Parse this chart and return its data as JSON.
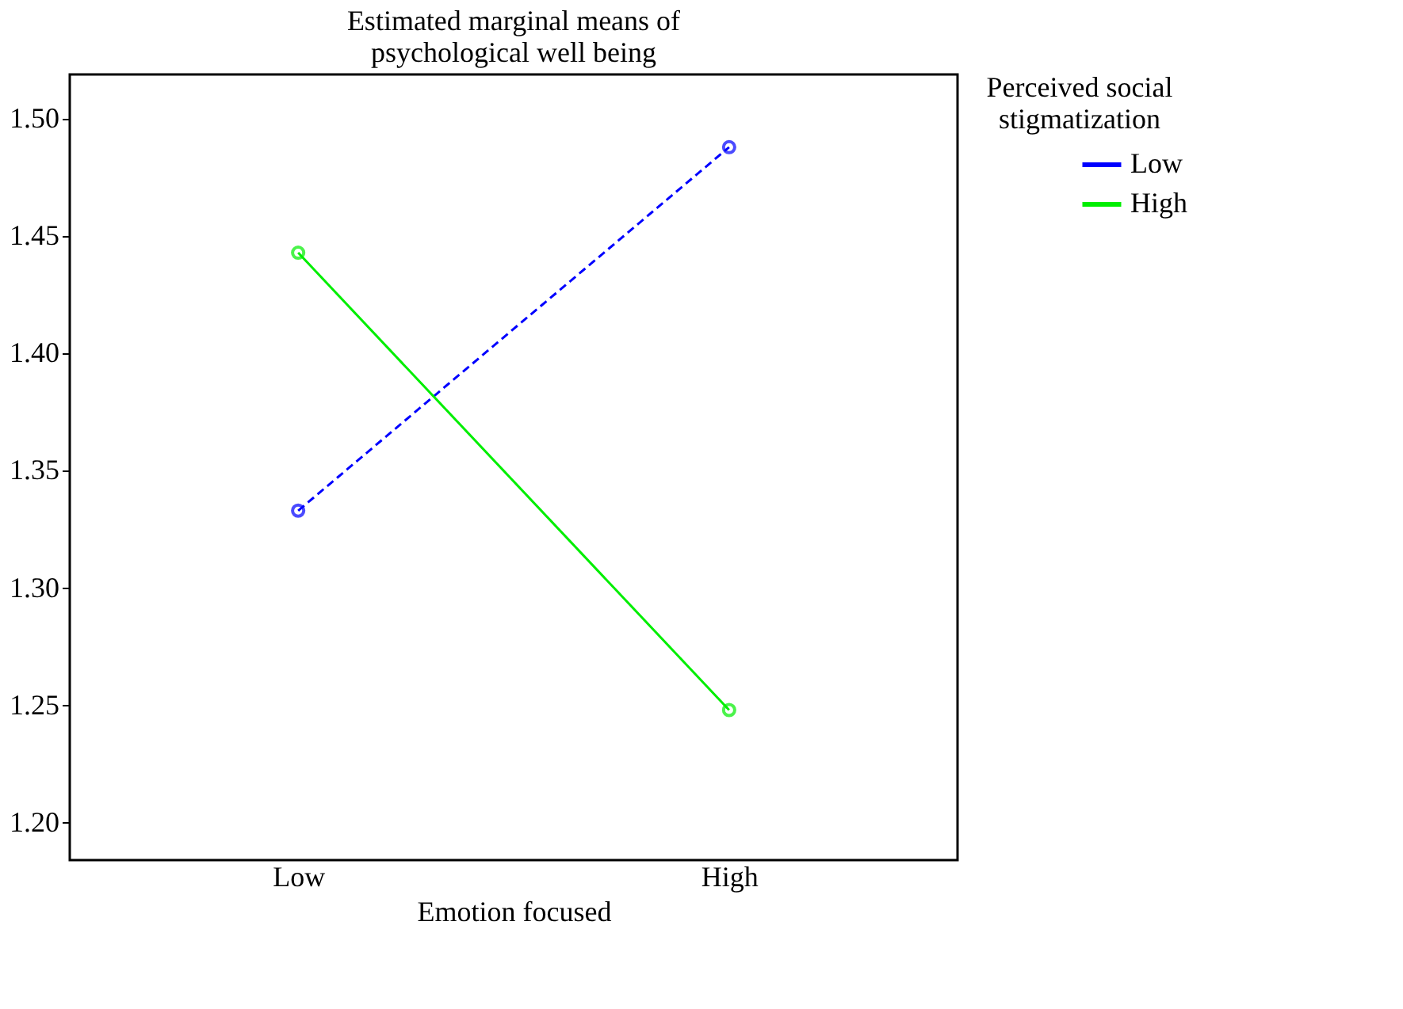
{
  "chart_data": {
    "type": "line",
    "title": [
      "Estimated marginal means of",
      "psychological well being"
    ],
    "xlabel": "Emotion focused",
    "legend_title": [
      "Perceived social",
      "stigmatization"
    ],
    "categories": [
      "Low",
      "High"
    ],
    "series": [
      {
        "name": "Low",
        "color": "#0000ff",
        "values": [
          1.333,
          1.488
        ],
        "line_style": "dashed"
      },
      {
        "name": "High",
        "color": "#00ee00",
        "values": [
          1.443,
          1.248
        ],
        "line_style": "solid"
      }
    ],
    "ylim": [
      1.184,
      1.519
    ],
    "yticks": [
      {
        "value": 1.2,
        "label": "1.20"
      },
      {
        "value": 1.25,
        "label": "1.25"
      },
      {
        "value": 1.3,
        "label": "1.30"
      },
      {
        "value": 1.35,
        "label": "1.35"
      },
      {
        "value": 1.4,
        "label": "1.40"
      },
      {
        "value": 1.45,
        "label": "1.45"
      },
      {
        "value": 1.5,
        "label": "1.50"
      }
    ],
    "grid": false,
    "legend": "top right",
    "marker": "circle"
  }
}
